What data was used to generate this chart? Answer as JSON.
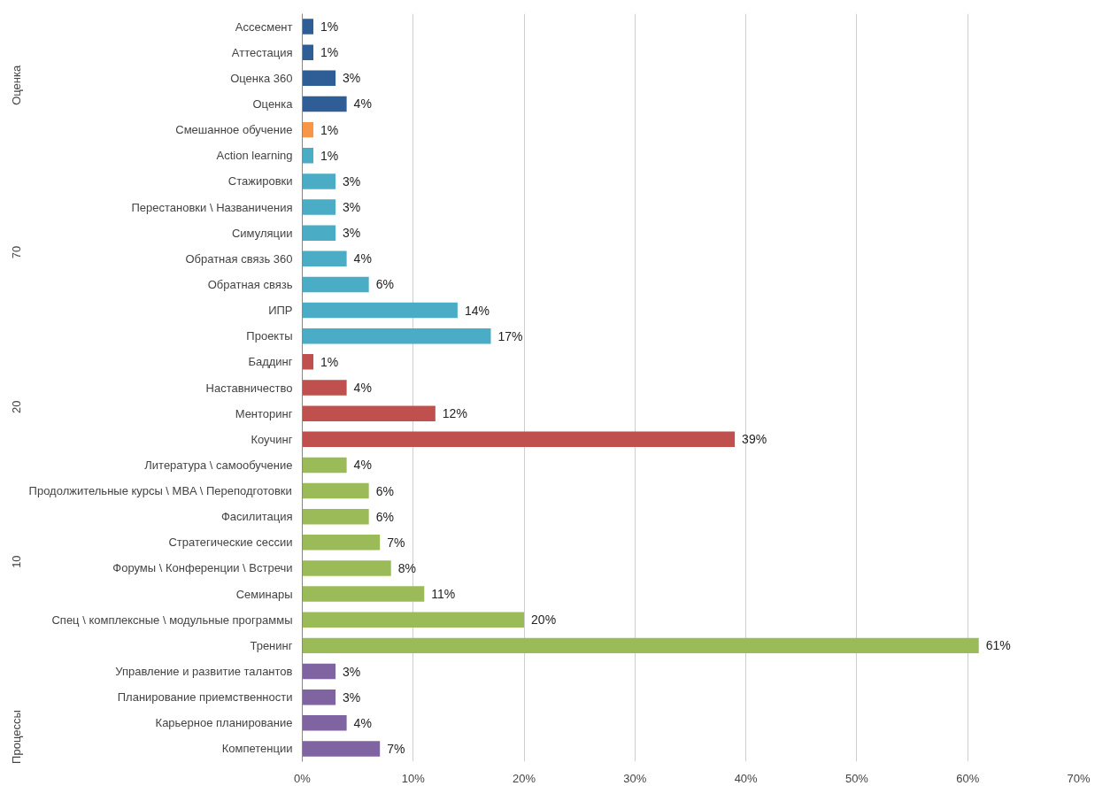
{
  "chart_data": {
    "type": "bar",
    "orientation": "horizontal",
    "categories": [
      "Ассесмент",
      "Аттестация",
      "Оценка 360",
      "Оценка",
      "Смешанное обучение",
      "Action learning",
      "Стажировки",
      "Перестановки \\ Названичения",
      "Симуляции",
      "Обратная связь 360",
      "Обратная связь",
      "ИПР",
      "Проекты",
      "Баддинг",
      "Наставничество",
      "Менторинг",
      "Коучинг",
      "Литература \\ самообучение",
      "Продолжительные курсы \\ MBA \\ Переподготовки",
      "Фасилитация",
      "Стратегические сессии",
      "Форумы \\ Конференции \\ Встречи",
      "Семинары",
      "Спец \\ комплексные \\ модульные программы",
      "Тренинг",
      "Управление и развитие талантов",
      "Планирование приемственности",
      "Карьерное планирование",
      "Компетенции"
    ],
    "values": [
      1,
      1,
      3,
      4,
      1,
      1,
      3,
      3,
      3,
      4,
      6,
      14,
      17,
      1,
      4,
      12,
      39,
      4,
      6,
      6,
      7,
      8,
      11,
      20,
      61,
      3,
      3,
      4,
      7
    ],
    "value_labels": [
      "1%",
      "1%",
      "3%",
      "4%",
      "1%",
      "1%",
      "3%",
      "3%",
      "3%",
      "4%",
      "6%",
      "14%",
      "17%",
      "1%",
      "4%",
      "12%",
      "39%",
      "4%",
      "6%",
      "6%",
      "7%",
      "8%",
      "11%",
      "20%",
      "61%",
      "3%",
      "3%",
      "4%",
      "7%"
    ],
    "colors": [
      "#2f5d95",
      "#2f5d95",
      "#2f5d95",
      "#2f5d95",
      "#f79646",
      "#4bacc6",
      "#4bacc6",
      "#4bacc6",
      "#4bacc6",
      "#4bacc6",
      "#4bacc6",
      "#4bacc6",
      "#4bacc6",
      "#c0504d",
      "#c0504d",
      "#c0504d",
      "#c0504d",
      "#9bbb59",
      "#9bbb59",
      "#9bbb59",
      "#9bbb59",
      "#9bbb59",
      "#9bbb59",
      "#9bbb59",
      "#9bbb59",
      "#8064a2",
      "#8064a2",
      "#8064a2",
      "#8064a2"
    ],
    "xlim": [
      0,
      70
    ],
    "xticks": [
      {
        "value": 0,
        "label": "0%"
      },
      {
        "value": 10,
        "label": "10%"
      },
      {
        "value": 20,
        "label": "20%"
      },
      {
        "value": 30,
        "label": "30%"
      },
      {
        "value": 40,
        "label": "40%"
      },
      {
        "value": 50,
        "label": "50%"
      },
      {
        "value": 60,
        "label": "60%"
      },
      {
        "value": 70,
        "label": "70%"
      }
    ],
    "grid": "x",
    "annotations": [
      "Оценка",
      "70",
      "20",
      "10",
      "Процессы"
    ]
  }
}
